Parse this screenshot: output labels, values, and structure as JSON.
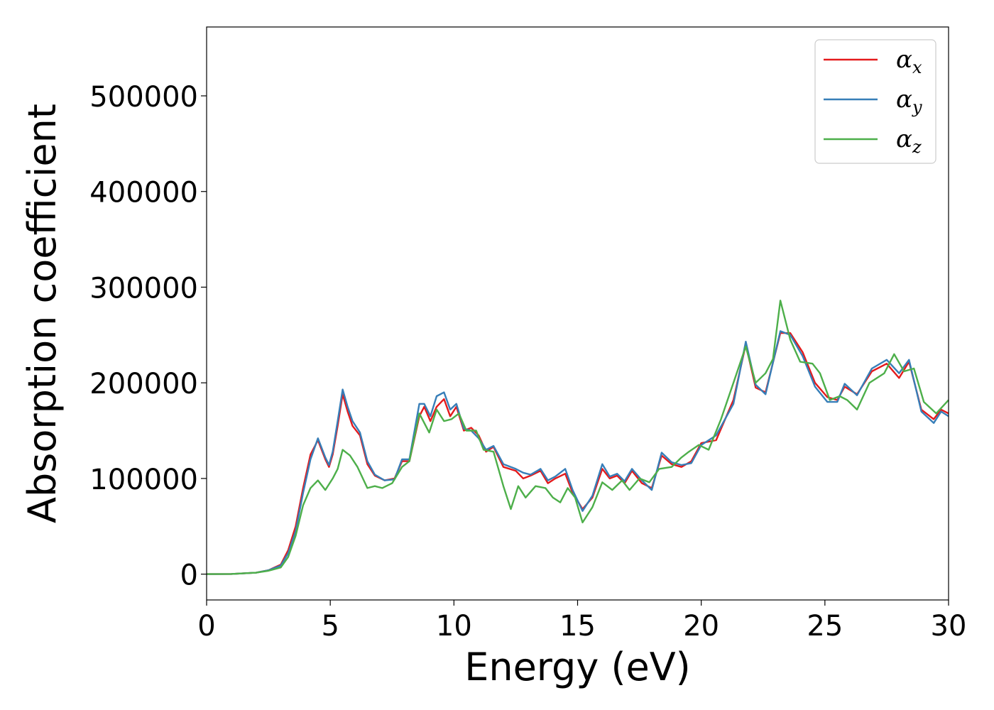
{
  "chart_data": {
    "type": "line",
    "title": "",
    "xlabel": "Energy (eV)",
    "ylabel": "Absorption coefficient",
    "xlim": [
      0,
      30
    ],
    "ylim": [
      -27000,
      572000
    ],
    "x_ticks": [
      0,
      5,
      10,
      15,
      20,
      25,
      30
    ],
    "y_ticks": [
      0,
      100000,
      200000,
      300000,
      400000,
      500000
    ],
    "x_tick_labels": [
      "0",
      "5",
      "10",
      "15",
      "20",
      "25",
      "30"
    ],
    "y_tick_labels": [
      "0",
      "100000",
      "200000",
      "300000",
      "400000",
      "500000"
    ],
    "grid": false,
    "legend_position": "top-right",
    "series": [
      {
        "name": "αx",
        "legend_base": "α",
        "legend_sub": "x",
        "color": "#e41a1c",
        "points": [
          [
            0,
            0
          ],
          [
            1,
            200
          ],
          [
            2,
            1500
          ],
          [
            2.5,
            4000
          ],
          [
            3,
            10000
          ],
          [
            3.3,
            25000
          ],
          [
            3.6,
            50000
          ],
          [
            3.9,
            90000
          ],
          [
            4.2,
            125000
          ],
          [
            4.5,
            140000
          ],
          [
            4.8,
            120000
          ],
          [
            4.95,
            112000
          ],
          [
            5.1,
            125000
          ],
          [
            5.3,
            155000
          ],
          [
            5.5,
            188000
          ],
          [
            5.7,
            170000
          ],
          [
            5.9,
            155000
          ],
          [
            6.2,
            145000
          ],
          [
            6.5,
            115000
          ],
          [
            6.8,
            103000
          ],
          [
            7.2,
            98000
          ],
          [
            7.6,
            100000
          ],
          [
            7.9,
            118000
          ],
          [
            8.2,
            118000
          ],
          [
            8.6,
            165000
          ],
          [
            8.8,
            175000
          ],
          [
            9.05,
            160000
          ],
          [
            9.3,
            175000
          ],
          [
            9.6,
            183000
          ],
          [
            9.85,
            165000
          ],
          [
            10.1,
            175000
          ],
          [
            10.4,
            150000
          ],
          [
            10.7,
            153000
          ],
          [
            11.0,
            145000
          ],
          [
            11.3,
            128000
          ],
          [
            11.6,
            133000
          ],
          [
            12.0,
            112000
          ],
          [
            12.5,
            108000
          ],
          [
            12.8,
            100000
          ],
          [
            13.1,
            103000
          ],
          [
            13.5,
            108000
          ],
          [
            13.8,
            95000
          ],
          [
            14.1,
            100000
          ],
          [
            14.5,
            105000
          ],
          [
            14.8,
            85000
          ],
          [
            15.2,
            68000
          ],
          [
            15.6,
            80000
          ],
          [
            16.0,
            110000
          ],
          [
            16.3,
            100000
          ],
          [
            16.6,
            103000
          ],
          [
            16.9,
            95000
          ],
          [
            17.2,
            108000
          ],
          [
            17.6,
            95000
          ],
          [
            18.0,
            90000
          ],
          [
            18.4,
            124000
          ],
          [
            18.8,
            115000
          ],
          [
            19.2,
            112000
          ],
          [
            19.6,
            118000
          ],
          [
            20.0,
            137000
          ],
          [
            20.6,
            140000
          ],
          [
            21.3,
            182000
          ],
          [
            21.8,
            240000
          ],
          [
            22.2,
            195000
          ],
          [
            22.6,
            190000
          ],
          [
            23.2,
            252000
          ],
          [
            23.6,
            252000
          ],
          [
            24.1,
            232000
          ],
          [
            24.6,
            200000
          ],
          [
            25.1,
            185000
          ],
          [
            25.5,
            182000
          ],
          [
            25.8,
            196000
          ],
          [
            26.3,
            188000
          ],
          [
            26.9,
            212000
          ],
          [
            27.5,
            220000
          ],
          [
            28.0,
            205000
          ],
          [
            28.4,
            222000
          ],
          [
            28.9,
            172000
          ],
          [
            29.4,
            162000
          ],
          [
            29.7,
            172000
          ],
          [
            30.0,
            168000
          ]
        ]
      },
      {
        "name": "αy",
        "legend_base": "α",
        "legend_sub": "y",
        "color": "#377eb8",
        "points": [
          [
            0,
            0
          ],
          [
            1,
            200
          ],
          [
            2,
            1500
          ],
          [
            2.5,
            4000
          ],
          [
            3,
            9000
          ],
          [
            3.3,
            22000
          ],
          [
            3.6,
            45000
          ],
          [
            3.9,
            85000
          ],
          [
            4.2,
            120000
          ],
          [
            4.5,
            142000
          ],
          [
            4.8,
            122000
          ],
          [
            4.95,
            114000
          ],
          [
            5.1,
            128000
          ],
          [
            5.3,
            160000
          ],
          [
            5.5,
            193000
          ],
          [
            5.7,
            175000
          ],
          [
            5.9,
            160000
          ],
          [
            6.2,
            148000
          ],
          [
            6.5,
            118000
          ],
          [
            6.8,
            104000
          ],
          [
            7.2,
            98000
          ],
          [
            7.6,
            99000
          ],
          [
            7.9,
            120000
          ],
          [
            8.2,
            120000
          ],
          [
            8.6,
            178000
          ],
          [
            8.8,
            178000
          ],
          [
            9.05,
            165000
          ],
          [
            9.3,
            186000
          ],
          [
            9.6,
            190000
          ],
          [
            9.85,
            172000
          ],
          [
            10.1,
            178000
          ],
          [
            10.4,
            152000
          ],
          [
            10.7,
            150000
          ],
          [
            11.0,
            142000
          ],
          [
            11.3,
            130000
          ],
          [
            11.6,
            134000
          ],
          [
            12.0,
            115000
          ],
          [
            12.5,
            110000
          ],
          [
            12.8,
            106000
          ],
          [
            13.1,
            104000
          ],
          [
            13.5,
            110000
          ],
          [
            13.8,
            98000
          ],
          [
            14.1,
            102000
          ],
          [
            14.5,
            110000
          ],
          [
            14.8,
            88000
          ],
          [
            15.2,
            66000
          ],
          [
            15.6,
            82000
          ],
          [
            16.0,
            115000
          ],
          [
            16.3,
            102000
          ],
          [
            16.6,
            105000
          ],
          [
            16.9,
            97000
          ],
          [
            17.2,
            110000
          ],
          [
            17.6,
            98000
          ],
          [
            18.0,
            88000
          ],
          [
            18.4,
            127000
          ],
          [
            18.8,
            117000
          ],
          [
            19.2,
            114000
          ],
          [
            19.6,
            116000
          ],
          [
            20.0,
            135000
          ],
          [
            20.6,
            145000
          ],
          [
            21.3,
            178000
          ],
          [
            21.8,
            243000
          ],
          [
            22.2,
            198000
          ],
          [
            22.6,
            188000
          ],
          [
            23.2,
            254000
          ],
          [
            23.6,
            250000
          ],
          [
            24.1,
            228000
          ],
          [
            24.6,
            196000
          ],
          [
            25.1,
            180000
          ],
          [
            25.5,
            180000
          ],
          [
            25.8,
            199000
          ],
          [
            26.3,
            187000
          ],
          [
            26.9,
            215000
          ],
          [
            27.5,
            224000
          ],
          [
            28.0,
            210000
          ],
          [
            28.4,
            224000
          ],
          [
            28.9,
            170000
          ],
          [
            29.4,
            158000
          ],
          [
            29.7,
            170000
          ],
          [
            30.0,
            165000
          ]
        ]
      },
      {
        "name": "αz",
        "legend_base": "α",
        "legend_sub": "z",
        "color": "#4daf4a",
        "points": [
          [
            0,
            0
          ],
          [
            1,
            200
          ],
          [
            2,
            1500
          ],
          [
            2.5,
            3500
          ],
          [
            3,
            7000
          ],
          [
            3.3,
            18000
          ],
          [
            3.6,
            40000
          ],
          [
            3.9,
            72000
          ],
          [
            4.2,
            90000
          ],
          [
            4.5,
            98000
          ],
          [
            4.8,
            88000
          ],
          [
            5.1,
            100000
          ],
          [
            5.3,
            110000
          ],
          [
            5.5,
            130000
          ],
          [
            5.8,
            124000
          ],
          [
            6.1,
            112000
          ],
          [
            6.5,
            90000
          ],
          [
            6.8,
            92000
          ],
          [
            7.1,
            90000
          ],
          [
            7.5,
            95000
          ],
          [
            7.9,
            112000
          ],
          [
            8.2,
            118000
          ],
          [
            8.6,
            168000
          ],
          [
            9.0,
            148000
          ],
          [
            9.3,
            172000
          ],
          [
            9.6,
            160000
          ],
          [
            9.9,
            162000
          ],
          [
            10.2,
            168000
          ],
          [
            10.5,
            150000
          ],
          [
            10.9,
            150000
          ],
          [
            11.2,
            130000
          ],
          [
            11.6,
            128000
          ],
          [
            12.0,
            92000
          ],
          [
            12.3,
            68000
          ],
          [
            12.6,
            92000
          ],
          [
            12.9,
            80000
          ],
          [
            13.3,
            92000
          ],
          [
            13.7,
            90000
          ],
          [
            14.0,
            80000
          ],
          [
            14.3,
            75000
          ],
          [
            14.6,
            90000
          ],
          [
            14.9,
            80000
          ],
          [
            15.2,
            54000
          ],
          [
            15.6,
            70000
          ],
          [
            16.0,
            96000
          ],
          [
            16.4,
            88000
          ],
          [
            16.8,
            98000
          ],
          [
            17.1,
            88000
          ],
          [
            17.5,
            100000
          ],
          [
            17.9,
            96000
          ],
          [
            18.3,
            110000
          ],
          [
            18.8,
            112000
          ],
          [
            19.2,
            122000
          ],
          [
            19.5,
            128000
          ],
          [
            19.9,
            135000
          ],
          [
            20.3,
            130000
          ],
          [
            20.8,
            162000
          ],
          [
            21.3,
            200000
          ],
          [
            21.8,
            238000
          ],
          [
            22.2,
            200000
          ],
          [
            22.6,
            210000
          ],
          [
            22.9,
            225000
          ],
          [
            23.2,
            286000
          ],
          [
            23.6,
            245000
          ],
          [
            24.0,
            222000
          ],
          [
            24.5,
            220000
          ],
          [
            24.8,
            210000
          ],
          [
            25.2,
            182000
          ],
          [
            25.6,
            186000
          ],
          [
            25.9,
            182000
          ],
          [
            26.3,
            172000
          ],
          [
            26.8,
            200000
          ],
          [
            27.4,
            210000
          ],
          [
            27.8,
            230000
          ],
          [
            28.2,
            212000
          ],
          [
            28.6,
            215000
          ],
          [
            29.0,
            180000
          ],
          [
            29.5,
            168000
          ],
          [
            30.0,
            182000
          ]
        ]
      }
    ]
  }
}
